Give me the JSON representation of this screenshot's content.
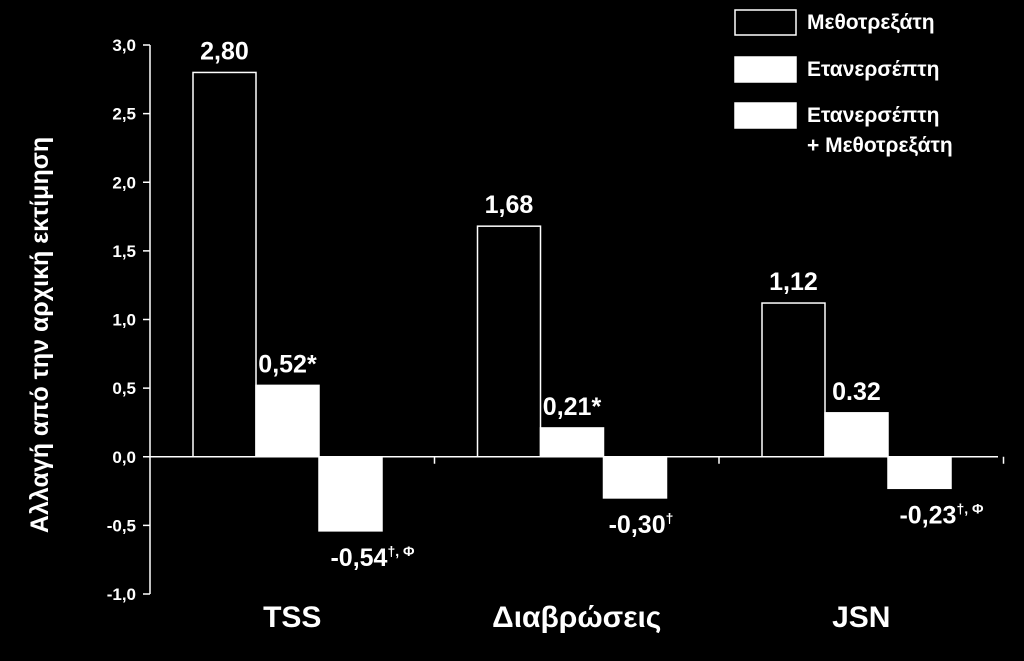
{
  "chart_data": {
    "type": "bar",
    "ylabel": "Αλλαγή από την αρχική εκτίμηση",
    "ylim": [
      -1.0,
      3.0
    ],
    "ytick_step": 0.5,
    "yticks": [
      "-1,0",
      "-0,5",
      "0,0",
      "0,5",
      "1,0",
      "1,5",
      "2,0",
      "2,5",
      "3,0"
    ],
    "categories": [
      "TSS",
      "Διαβρώσεις",
      "JSN"
    ],
    "legend_position": "top-right",
    "grid": false,
    "series": [
      {
        "name": "Μεθοτρεξάτη",
        "style": "outline",
        "values": [
          2.8,
          1.68,
          1.12
        ],
        "labels": [
          {
            "text": "2,80",
            "sup": ""
          },
          {
            "text": "1,68",
            "sup": ""
          },
          {
            "text": "1,12",
            "sup": ""
          }
        ]
      },
      {
        "name": "Ετανερσέπτη",
        "style": "filled",
        "values": [
          0.52,
          0.21,
          0.32
        ],
        "labels": [
          {
            "text": "0,52*",
            "sup": ""
          },
          {
            "text": "0,21*",
            "sup": ""
          },
          {
            "text": "0.32",
            "sup": ""
          }
        ]
      },
      {
        "name": "Ετανερσέπτη + Μεθοτρεξάτη",
        "legend_lines": [
          "Ετανερσέπτη",
          "+ Μεθοτρεξάτη"
        ],
        "style": "filled",
        "values": [
          -0.54,
          -0.3,
          -0.23
        ],
        "labels": [
          {
            "text": "-0,54",
            "sup": "†, Φ"
          },
          {
            "text": "-0,30",
            "sup": "†"
          },
          {
            "text": "-0,23",
            "sup": "†, Φ"
          }
        ]
      }
    ]
  },
  "colors": {
    "background": "#000000",
    "foreground": "#ffffff"
  }
}
